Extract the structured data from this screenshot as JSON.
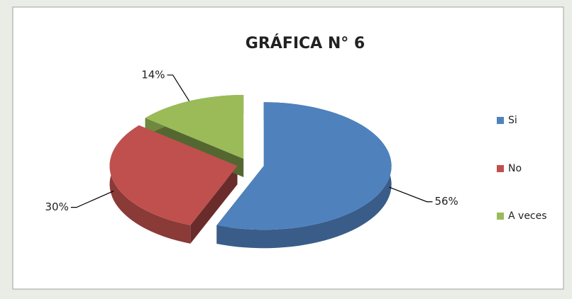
{
  "chart_data": {
    "type": "pie",
    "title": "GRÁFICA N° 6",
    "categories": [
      "Si",
      "No",
      "A veces"
    ],
    "values": [
      56,
      30,
      14
    ],
    "value_labels": [
      "56%",
      "30%",
      "14%"
    ],
    "colors": [
      "#4f81bd",
      "#c0504d",
      "#9bbb59"
    ],
    "legend": "right"
  }
}
